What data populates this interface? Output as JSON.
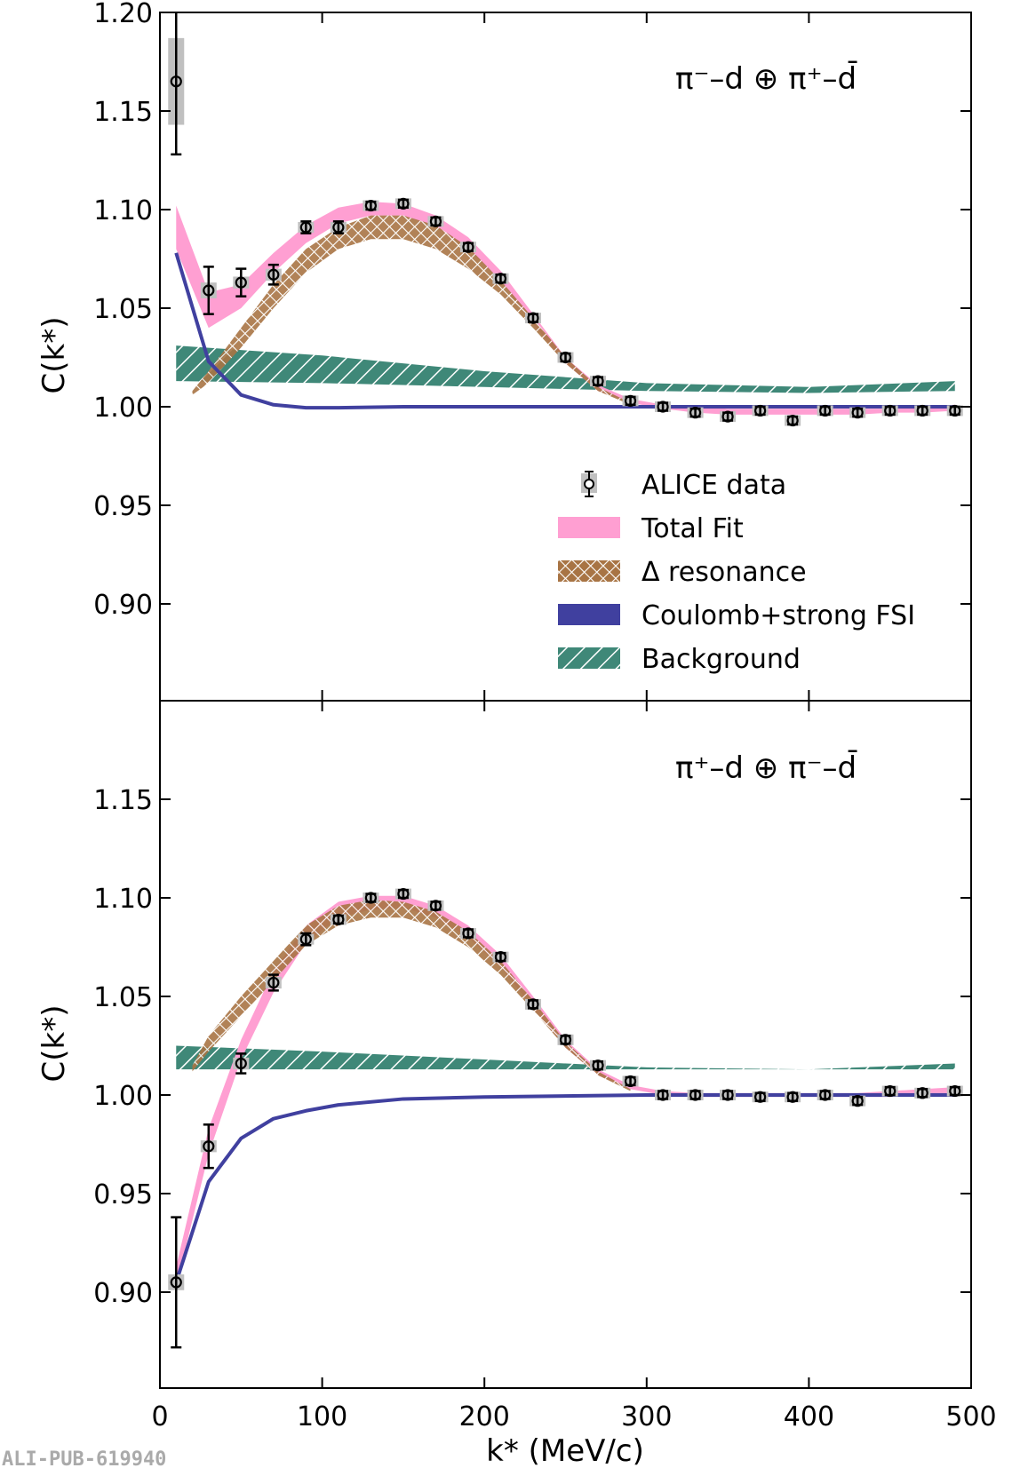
{
  "chart_data": [
    {
      "type": "scatter",
      "panel": "top",
      "title": "π⁻–d ⊕ π⁺–d̄",
      "xlabel": "k* (MeV/c)",
      "ylabel": "C(k*)",
      "xlim": [
        0,
        500
      ],
      "ylim": [
        0.851,
        1.2
      ],
      "yticks": [
        "1.20",
        "1.15",
        "1.10",
        "1.05",
        "1.00",
        "0.95",
        "0.90"
      ],
      "ytick_values": [
        1.2,
        1.15,
        1.1,
        1.05,
        1.0,
        0.95,
        0.9
      ],
      "data": {
        "name": "ALICE data",
        "x": [
          10,
          30,
          50,
          70,
          90,
          110,
          130,
          150,
          170,
          190,
          210,
          230,
          250,
          270,
          290,
          310,
          330,
          350,
          370,
          390,
          410,
          430,
          450,
          470,
          490
        ],
        "y": [
          1.165,
          1.059,
          1.063,
          1.067,
          1.091,
          1.091,
          1.102,
          1.103,
          1.094,
          1.081,
          1.065,
          1.045,
          1.025,
          1.013,
          1.003,
          1.0,
          0.997,
          0.995,
          0.998,
          0.993,
          0.998,
          0.997,
          0.998,
          0.998,
          0.998
        ],
        "err": [
          0.037,
          0.012,
          0.007,
          0.005,
          0.003,
          0.003,
          0.002,
          0.002,
          0.002,
          0.002,
          0.002,
          0.002,
          0.002,
          0.002,
          0.002,
          0.002,
          0.002,
          0.002,
          0.002,
          0.002,
          0.002,
          0.002,
          0.002,
          0.002,
          0.002
        ],
        "syst": [
          0.022,
          0.004,
          0.003,
          0.003,
          0.002,
          0.002,
          0.002,
          0.002,
          0.002,
          0.002,
          0.002,
          0.002,
          0.002,
          0.002,
          0.002,
          0.002,
          0.002,
          0.002,
          0.002,
          0.002,
          0.002,
          0.002,
          0.002,
          0.002,
          0.002
        ]
      },
      "total_fit": {
        "x": [
          10,
          30,
          50,
          70,
          90,
          110,
          130,
          150,
          170,
          190,
          210,
          230,
          250,
          270,
          290,
          310,
          330,
          350,
          370,
          390,
          410,
          430,
          450,
          470,
          490
        ],
        "lo": [
          1.08,
          1.04,
          1.05,
          1.068,
          1.083,
          1.093,
          1.097,
          1.097,
          1.091,
          1.08,
          1.064,
          1.042,
          1.022,
          1.008,
          1.002,
          0.999,
          0.997,
          0.996,
          0.996,
          0.996,
          0.996,
          0.996,
          0.997,
          0.997,
          0.998
        ],
        "hi": [
          1.102,
          1.058,
          1.062,
          1.078,
          1.092,
          1.101,
          1.104,
          1.103,
          1.097,
          1.086,
          1.069,
          1.047,
          1.025,
          1.011,
          1.004,
          1.001,
          1.0,
          0.999,
          0.999,
          0.999,
          0.999,
          0.999,
          0.999,
          1.0,
          1.001
        ]
      },
      "delta_resonance": {
        "x": [
          20,
          30,
          50,
          70,
          90,
          110,
          130,
          150,
          170,
          190,
          210,
          230,
          250,
          270,
          290
        ],
        "lo": [
          1.006,
          1.012,
          1.03,
          1.05,
          1.068,
          1.08,
          1.085,
          1.085,
          1.08,
          1.07,
          1.057,
          1.04,
          1.022,
          1.008,
          1.001
        ],
        "hi": [
          1.008,
          1.018,
          1.04,
          1.062,
          1.08,
          1.091,
          1.097,
          1.097,
          1.092,
          1.081,
          1.064,
          1.045,
          1.025,
          1.01,
          1.002
        ]
      },
      "coulomb_strong_fsi": {
        "x": [
          10,
          30,
          50,
          70,
          90,
          110,
          150,
          200,
          300,
          400,
          490
        ],
        "y": [
          1.078,
          1.023,
          1.006,
          1.001,
          0.9995,
          0.9995,
          1.0,
          1.0,
          1.0,
          1.0,
          1.0
        ]
      },
      "background": {
        "x": [
          10,
          100,
          200,
          300,
          400,
          490
        ],
        "lo": [
          1.013,
          1.012,
          1.01,
          1.008,
          1.007,
          1.008
        ],
        "hi": [
          1.031,
          1.026,
          1.018,
          1.012,
          1.01,
          1.013
        ]
      }
    },
    {
      "type": "scatter",
      "panel": "bottom",
      "title": "π⁺–d ⊕ π⁻–d̄",
      "xlabel": "k* (MeV/c)",
      "ylabel": "C(k*)",
      "xlim": [
        0,
        500
      ],
      "ylim": [
        0.851,
        1.2
      ],
      "xticks": [
        "0",
        "100",
        "200",
        "300",
        "400",
        "500"
      ],
      "xtick_values": [
        0,
        100,
        200,
        300,
        400,
        500
      ],
      "yticks": [
        "1.15",
        "1.10",
        "1.05",
        "1.00",
        "0.95",
        "0.90"
      ],
      "ytick_values": [
        1.15,
        1.1,
        1.05,
        1.0,
        0.95,
        0.9
      ],
      "data": {
        "name": "ALICE data",
        "x": [
          10,
          30,
          50,
          70,
          90,
          110,
          130,
          150,
          170,
          190,
          210,
          230,
          250,
          270,
          290,
          310,
          330,
          350,
          370,
          390,
          410,
          430,
          450,
          470,
          490
        ],
        "y": [
          0.905,
          0.974,
          1.016,
          1.057,
          1.079,
          1.089,
          1.1,
          1.102,
          1.096,
          1.082,
          1.07,
          1.046,
          1.028,
          1.015,
          1.007,
          1.0,
          1.0,
          1.0,
          0.999,
          0.999,
          1.0,
          0.997,
          1.002,
          1.001,
          1.002
        ],
        "err": [
          0.033,
          0.011,
          0.005,
          0.004,
          0.003,
          0.002,
          0.002,
          0.002,
          0.002,
          0.002,
          0.002,
          0.002,
          0.002,
          0.002,
          0.002,
          0.002,
          0.002,
          0.002,
          0.002,
          0.002,
          0.002,
          0.002,
          0.002,
          0.002,
          0.002
        ],
        "syst": [
          0.004,
          0.003,
          0.003,
          0.003,
          0.002,
          0.002,
          0.002,
          0.002,
          0.002,
          0.002,
          0.002,
          0.002,
          0.002,
          0.002,
          0.002,
          0.002,
          0.002,
          0.002,
          0.002,
          0.002,
          0.002,
          0.002,
          0.002,
          0.002,
          0.002
        ]
      },
      "total_fit": {
        "x": [
          10,
          30,
          50,
          70,
          90,
          110,
          130,
          150,
          170,
          190,
          210,
          230,
          250,
          270,
          290,
          310,
          330,
          350,
          370,
          390,
          410,
          430,
          450,
          470,
          490
        ],
        "lo": [
          0.903,
          0.97,
          1.018,
          1.052,
          1.077,
          1.09,
          1.094,
          1.095,
          1.09,
          1.08,
          1.065,
          1.044,
          1.024,
          1.01,
          1.003,
          1.0,
          0.999,
          0.999,
          0.999,
          0.999,
          0.999,
          0.999,
          0.999,
          1.0,
          1.0
        ],
        "hi": [
          0.913,
          0.983,
          1.028,
          1.063,
          1.086,
          1.098,
          1.101,
          1.101,
          1.096,
          1.086,
          1.071,
          1.05,
          1.028,
          1.013,
          1.005,
          1.002,
          1.001,
          1.001,
          1.001,
          1.001,
          1.001,
          1.001,
          1.002,
          1.003,
          1.004
        ]
      },
      "delta_resonance": {
        "x": [
          20,
          30,
          50,
          70,
          90,
          110,
          130,
          150,
          170,
          190,
          210,
          230,
          250,
          270,
          290
        ],
        "lo": [
          1.012,
          1.022,
          1.04,
          1.058,
          1.076,
          1.086,
          1.09,
          1.09,
          1.085,
          1.075,
          1.061,
          1.043,
          1.024,
          1.01,
          1.002
        ],
        "hi": [
          1.015,
          1.03,
          1.05,
          1.068,
          1.086,
          1.096,
          1.099,
          1.098,
          1.093,
          1.083,
          1.068,
          1.048,
          1.027,
          1.012,
          1.003
        ]
      },
      "coulomb_strong_fsi": {
        "x": [
          10,
          30,
          50,
          70,
          90,
          110,
          150,
          200,
          300,
          400,
          490
        ],
        "y": [
          0.905,
          0.956,
          0.978,
          0.988,
          0.992,
          0.995,
          0.998,
          0.999,
          1.0,
          1.0,
          1.0
        ]
      },
      "background": {
        "x": [
          10,
          100,
          200,
          300,
          400,
          490
        ],
        "lo": [
          1.013,
          1.013,
          1.013,
          1.013,
          1.013,
          1.013
        ],
        "hi": [
          1.025,
          1.022,
          1.018,
          1.014,
          1.013,
          1.016
        ]
      }
    }
  ],
  "legend": {
    "placement": "center-right of top panel",
    "items": [
      {
        "label": "ALICE data",
        "kind": "data"
      },
      {
        "label": "Total Fit",
        "kind": "fill",
        "color": "#ff9fd2"
      },
      {
        "label": "Δ resonance",
        "kind": "crosshatch",
        "color": "#a87444"
      },
      {
        "label": "Coulomb+strong FSI",
        "kind": "fill",
        "color": "#40409f"
      },
      {
        "label": "Background",
        "kind": "hatch",
        "color": "#3f8878"
      }
    ]
  },
  "axes": {
    "xlabel": "k* (MeV/c)",
    "ylabel": "C(k*)"
  },
  "watermark": "ALI-PUB-619940",
  "colors": {
    "total_fit": "#ff9fd2",
    "delta": "#a87444",
    "coulomb": "#40409f",
    "background": "#3f8878",
    "syst_box": "#c0c0c0"
  }
}
